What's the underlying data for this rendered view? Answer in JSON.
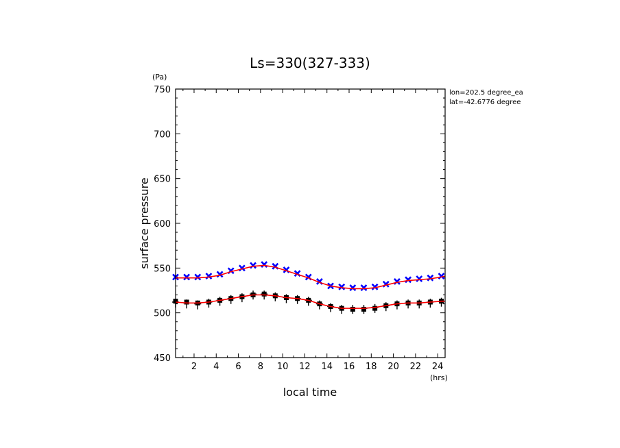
{
  "chart_data": {
    "type": "line",
    "title": "Ls=330(327-333)",
    "xlabel": "local time",
    "ylabel": "surface pressure",
    "x_unit": "(hrs)",
    "y_unit": "(Pa)",
    "xlim": [
      0.33,
      24.67
    ],
    "ylim": [
      450,
      750
    ],
    "xticks": [
      2,
      4,
      6,
      8,
      10,
      12,
      14,
      16,
      18,
      20,
      22,
      24
    ],
    "yticks": [
      450,
      500,
      550,
      600,
      650,
      700,
      750
    ],
    "annotations": [
      "lon=202.5 degree_ea",
      "lat=-42.6776 degree"
    ],
    "grid": false,
    "series": [
      {
        "marker": "x",
        "color": "#0000ff",
        "x": [
          0.33,
          1.33,
          2.33,
          3.33,
          4.33,
          5.33,
          6.33,
          7.33,
          8.33,
          9.33,
          10.33,
          11.33,
          12.33,
          13.33,
          14.33,
          15.33,
          16.33,
          17.33,
          18.33,
          19.33,
          20.33,
          21.33,
          22.33,
          23.33,
          24.33
        ],
        "values": [
          540,
          540,
          540,
          541,
          543,
          547,
          550,
          553,
          554,
          552,
          548,
          544,
          540,
          535,
          530,
          529,
          528,
          528,
          529,
          532,
          535,
          537,
          538,
          539,
          541
        ]
      },
      {
        "marker": "+",
        "color": "#000000",
        "x": [
          0.33,
          1.33,
          2.33,
          3.33,
          4.33,
          5.33,
          6.33,
          7.33,
          8.33,
          9.33,
          10.33,
          11.33,
          12.33,
          13.33,
          14.33,
          15.33,
          16.33,
          17.33,
          18.33,
          19.33,
          20.33,
          21.33,
          22.33,
          23.33,
          24.33
        ],
        "values": [
          512,
          511,
          510,
          512,
          514,
          516,
          518,
          521,
          521,
          519,
          517,
          516,
          514,
          510,
          507,
          505,
          505,
          505,
          506,
          508,
          510,
          511,
          511,
          512,
          513
        ]
      },
      {
        "marker": "square",
        "color": "#000000",
        "x": [
          0.33,
          1.33,
          2.33,
          3.33,
          4.33,
          5.33,
          6.33,
          7.33,
          8.33,
          9.33,
          10.33,
          11.33,
          12.33,
          13.33,
          14.33,
          15.33,
          16.33,
          17.33,
          18.33,
          19.33,
          20.33,
          21.33,
          22.33,
          23.33,
          24.33
        ],
        "values": [
          513,
          512,
          511,
          512,
          514,
          516,
          518,
          520,
          521,
          519,
          517,
          516,
          514,
          510,
          507,
          505,
          504,
          504,
          505,
          508,
          510,
          511,
          511,
          512,
          513
        ]
      },
      {
        "marker": "line",
        "color": "#ff0000",
        "x": [
          0.33,
          1.33,
          2.33,
          3.33,
          4.33,
          5.33,
          6.33,
          7.33,
          8.33,
          9.33,
          10.33,
          11.33,
          12.33,
          13.33,
          14.33,
          15.33,
          16.33,
          17.33,
          18.33,
          19.33,
          20.33,
          21.33,
          22.33,
          23.33,
          24.33,
          24.67
        ],
        "values": [
          539,
          539,
          539,
          540,
          542,
          546,
          549,
          552,
          553,
          551,
          547,
          543,
          539,
          534,
          530,
          528,
          527,
          527,
          528,
          531,
          534,
          536,
          537,
          538,
          540,
          541
        ]
      },
      {
        "marker": "line",
        "color": "#ff0000",
        "x": [
          0.33,
          1.33,
          2.33,
          3.33,
          4.33,
          5.33,
          6.33,
          7.33,
          8.33,
          9.33,
          10.33,
          11.33,
          12.33,
          13.33,
          14.33,
          15.33,
          16.33,
          17.33,
          18.33,
          19.33,
          20.33,
          21.33,
          22.33,
          23.33,
          24.33,
          24.67
        ],
        "values": [
          512,
          511,
          511,
          512,
          514,
          516,
          518,
          520,
          520,
          519,
          517,
          516,
          514,
          510,
          507,
          505,
          505,
          505,
          506,
          508,
          510,
          511,
          511,
          512,
          513,
          513
        ]
      }
    ]
  }
}
